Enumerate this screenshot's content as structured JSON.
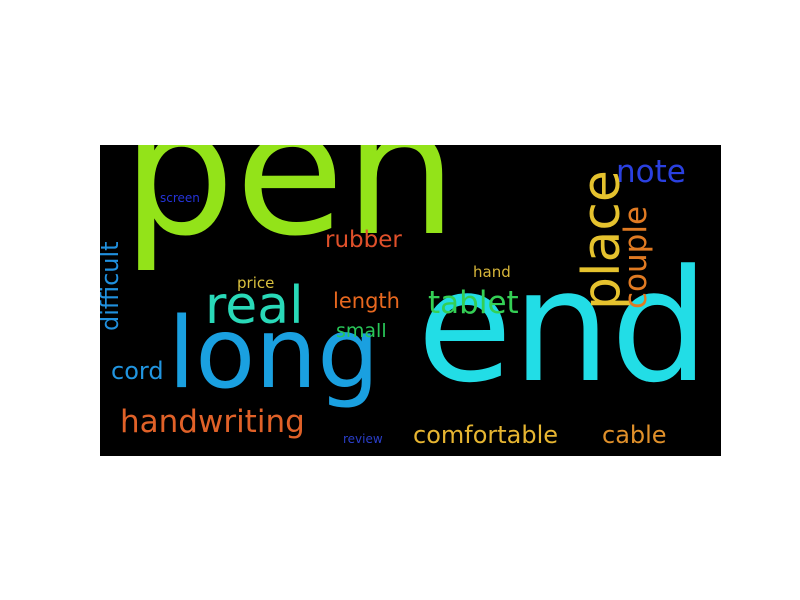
{
  "words": {
    "pen": {
      "text": "pen",
      "color": "#93e319"
    },
    "end": {
      "text": "end",
      "color": "#22dde6"
    },
    "long": {
      "text": "long",
      "color": "#1aa0e0"
    },
    "place": {
      "text": "place",
      "color": "#e5c22e"
    },
    "real": {
      "text": "real",
      "color": "#29d9b8"
    },
    "tablet": {
      "text": "tablet",
      "color": "#34cf55"
    },
    "handwriting": {
      "text": "handwriting",
      "color": "#e06128"
    },
    "comfortable": {
      "text": "comfortable",
      "color": "#e6b531"
    },
    "cable": {
      "text": "cable",
      "color": "#e0902a"
    },
    "note": {
      "text": "note",
      "color": "#2a40e0"
    },
    "couple": {
      "text": "couple",
      "color": "#e07a22"
    },
    "rubber": {
      "text": "rubber",
      "color": "#e0502a"
    },
    "length": {
      "text": "length",
      "color": "#e8681f"
    },
    "small": {
      "text": "small",
      "color": "#29c759"
    },
    "cord": {
      "text": "cord",
      "color": "#2195e0"
    },
    "difficult": {
      "text": "difficult",
      "color": "#2090de"
    },
    "hand": {
      "text": "hand",
      "color": "#d7b63a"
    },
    "price": {
      "text": "price",
      "color": "#d9c03e"
    },
    "screen": {
      "text": "screen",
      "color": "#2433d8"
    },
    "review": {
      "text": "review",
      "color": "#2a3ec9"
    }
  }
}
